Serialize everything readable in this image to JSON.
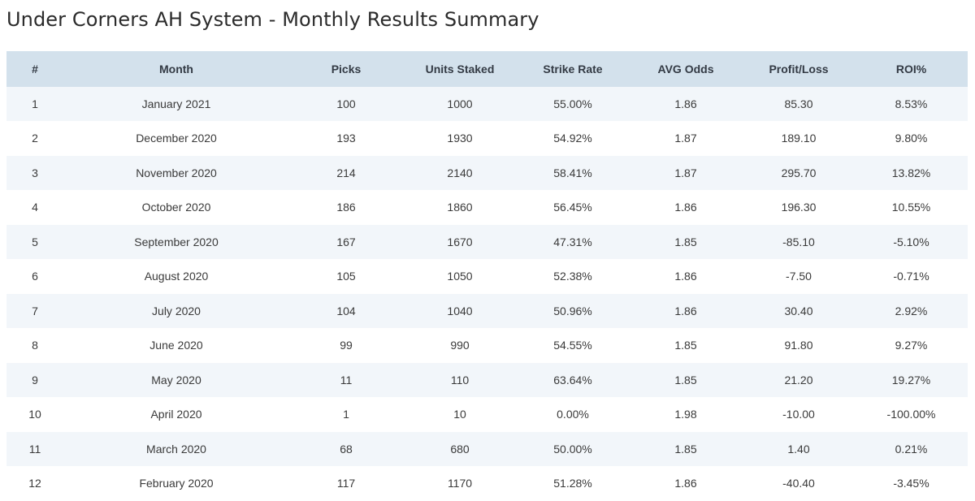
{
  "page": {
    "title": "Under Corners AH System - Monthly Results Summary"
  },
  "table": {
    "headers": {
      "num": "#",
      "month": "Month",
      "picks": "Picks",
      "units": "Units Staked",
      "strike": "Strike Rate",
      "odds": "AVG Odds",
      "pl": "Profit/Loss",
      "roi": "ROI%"
    },
    "rows": [
      {
        "num": "1",
        "month": "January 2021",
        "picks": "100",
        "units": "1000",
        "strike": "55.00%",
        "odds": "1.86",
        "pl": "85.30",
        "roi": "8.53%"
      },
      {
        "num": "2",
        "month": "December 2020",
        "picks": "193",
        "units": "1930",
        "strike": "54.92%",
        "odds": "1.87",
        "pl": "189.10",
        "roi": "9.80%"
      },
      {
        "num": "3",
        "month": "November 2020",
        "picks": "214",
        "units": "2140",
        "strike": "58.41%",
        "odds": "1.87",
        "pl": "295.70",
        "roi": "13.82%"
      },
      {
        "num": "4",
        "month": "October 2020",
        "picks": "186",
        "units": "1860",
        "strike": "56.45%",
        "odds": "1.86",
        "pl": "196.30",
        "roi": "10.55%"
      },
      {
        "num": "5",
        "month": "September 2020",
        "picks": "167",
        "units": "1670",
        "strike": "47.31%",
        "odds": "1.85",
        "pl": "-85.10",
        "roi": "-5.10%"
      },
      {
        "num": "6",
        "month": "August 2020",
        "picks": "105",
        "units": "1050",
        "strike": "52.38%",
        "odds": "1.86",
        "pl": "-7.50",
        "roi": "-0.71%"
      },
      {
        "num": "7",
        "month": "July 2020",
        "picks": "104",
        "units": "1040",
        "strike": "50.96%",
        "odds": "1.86",
        "pl": "30.40",
        "roi": "2.92%"
      },
      {
        "num": "8",
        "month": "June 2020",
        "picks": "99",
        "units": "990",
        "strike": "54.55%",
        "odds": "1.85",
        "pl": "91.80",
        "roi": "9.27%"
      },
      {
        "num": "9",
        "month": "May 2020",
        "picks": "11",
        "units": "110",
        "strike": "63.64%",
        "odds": "1.85",
        "pl": "21.20",
        "roi": "19.27%"
      },
      {
        "num": "10",
        "month": "April 2020",
        "picks": "1",
        "units": "10",
        "strike": "0.00%",
        "odds": "1.98",
        "pl": "-10.00",
        "roi": "-100.00%"
      },
      {
        "num": "11",
        "month": "March 2020",
        "picks": "68",
        "units": "680",
        "strike": "50.00%",
        "odds": "1.85",
        "pl": "1.40",
        "roi": "0.21%"
      },
      {
        "num": "12",
        "month": "February 2020",
        "picks": "117",
        "units": "1170",
        "strike": "51.28%",
        "odds": "1.86",
        "pl": "-40.40",
        "roi": "-3.45%"
      }
    ]
  },
  "colors": {
    "header_bg": "#d3e1ec",
    "row_alt_bg": "#f2f6fa",
    "text": "#333333"
  }
}
